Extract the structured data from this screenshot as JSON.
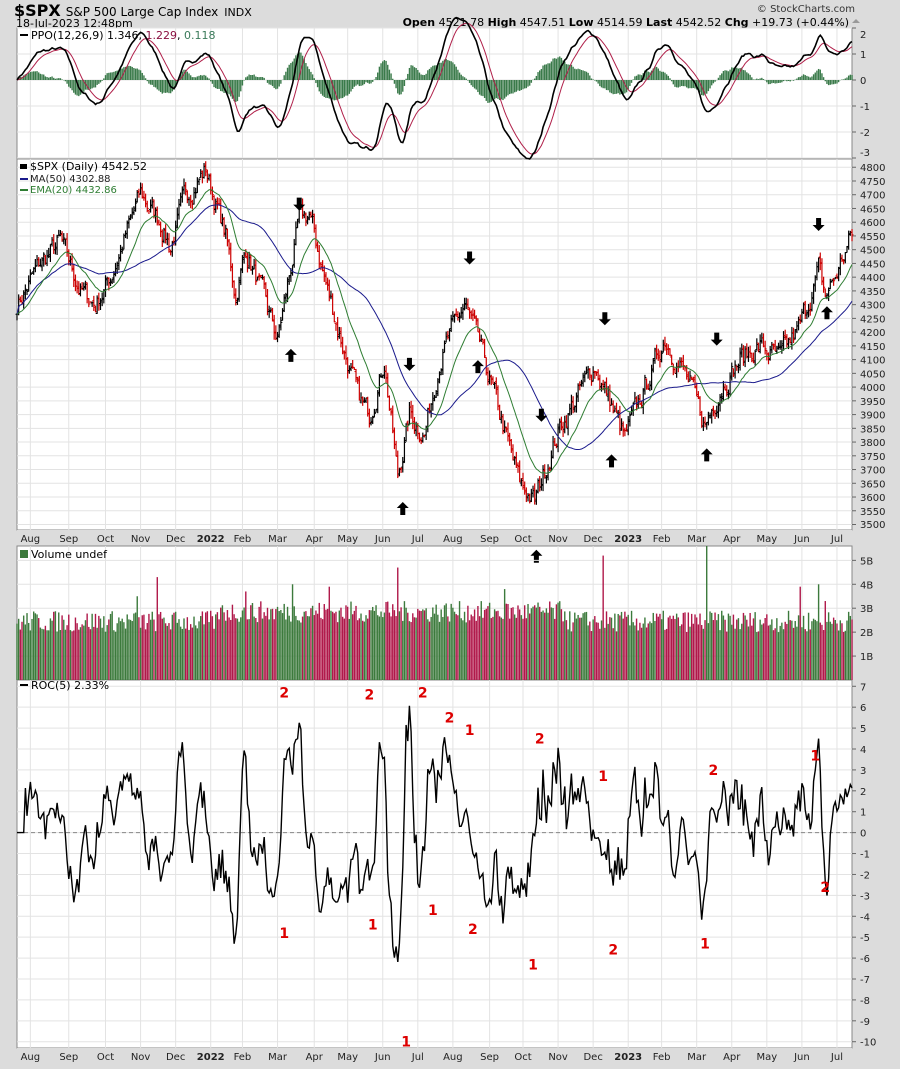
{
  "header": {
    "symbol": "$SPX",
    "name": "S&P 500 Large Cap Index",
    "exchange": "INDX",
    "datetime": "18-Jul-2023 12:48pm",
    "copyright": "© StockCharts.com",
    "open_label": "Open",
    "open": "4521.78",
    "high_label": "High",
    "high": "4547.51",
    "low_label": "Low",
    "low": "4514.59",
    "last_label": "Last",
    "last": "4542.52",
    "chg_label": "Chg",
    "chg": "+19.73 (+0.44%)"
  },
  "chart_data": [
    {
      "type": "line",
      "panel": "ppo",
      "title": "PPO(12,26,9)",
      "values_text": [
        "1.346",
        "1.229",
        "0.118"
      ],
      "ylim": [
        -3,
        2
      ],
      "yticks": [
        2,
        1,
        0,
        -1,
        -2,
        -3
      ],
      "colors": {
        "ppo": "#000000",
        "signal": "#b0204a",
        "hist": "#3a7a4a"
      }
    },
    {
      "type": "ohlc",
      "panel": "price",
      "title": "$SPX (Daily)",
      "last": "4542.52",
      "ma_label": "MA(50)",
      "ma_value": "4302.88",
      "ema_label": "EMA(20)",
      "ema_value": "4432.86",
      "ylim": [
        3480,
        4830
      ],
      "yticks": [
        4800,
        4750,
        4700,
        4650,
        4600,
        4550,
        4500,
        4450,
        4400,
        4350,
        4300,
        4250,
        4200,
        4150,
        4100,
        4050,
        4000,
        3950,
        3900,
        3850,
        3800,
        3750,
        3700,
        3650,
        3600,
        3550,
        3500
      ],
      "trading_days": 500,
      "anchors_day_close": [
        [
          0,
          4300
        ],
        [
          14,
          4450
        ],
        [
          26,
          4530
        ],
        [
          38,
          4350
        ],
        [
          47,
          4300
        ],
        [
          56,
          4400
        ],
        [
          74,
          4700
        ],
        [
          86,
          4600
        ],
        [
          92,
          4510
        ],
        [
          101,
          4700
        ],
        [
          113,
          4790
        ],
        [
          125,
          4550
        ],
        [
          131,
          4330
        ],
        [
          137,
          4500
        ],
        [
          149,
          4300
        ],
        [
          156,
          4170
        ],
        [
          169,
          4600
        ],
        [
          175,
          4630
        ],
        [
          184,
          4400
        ],
        [
          196,
          4130
        ],
        [
          205,
          3950
        ],
        [
          211,
          3900
        ],
        [
          220,
          4100
        ],
        [
          228,
          3666
        ],
        [
          235,
          3900
        ],
        [
          244,
          3830
        ],
        [
          253,
          4100
        ],
        [
          268,
          4300
        ],
        [
          277,
          4150
        ],
        [
          289,
          3900
        ],
        [
          301,
          3650
        ],
        [
          310,
          3585
        ],
        [
          316,
          3700
        ],
        [
          325,
          3850
        ],
        [
          334,
          3950
        ],
        [
          346,
          4080
        ],
        [
          355,
          3950
        ],
        [
          364,
          3810
        ],
        [
          373,
          3950
        ],
        [
          388,
          4180
        ],
        [
          400,
          4050
        ],
        [
          412,
          3855
        ],
        [
          421,
          4000
        ],
        [
          433,
          4100
        ],
        [
          445,
          4150
        ],
        [
          457,
          4100
        ],
        [
          469,
          4220
        ],
        [
          480,
          4425
        ],
        [
          484,
          4330
        ],
        [
          490,
          4400
        ],
        [
          500,
          4554
        ]
      ],
      "up_arrows_day_price": [
        [
          164,
          4169
        ],
        [
          231,
          3612
        ],
        [
          276,
          4128
        ],
        [
          311,
          3438
        ],
        [
          356,
          3785
        ],
        [
          413,
          3807
        ],
        [
          485,
          4324
        ]
      ],
      "down_arrows_day_price": [
        [
          169,
          4612
        ],
        [
          235,
          4029
        ],
        [
          271,
          4416
        ],
        [
          314,
          3844
        ],
        [
          352,
          4195
        ],
        [
          419,
          4121
        ],
        [
          480,
          4538
        ]
      ],
      "colors": {
        "up": "#000000",
        "down": "#cc0000",
        "ma": "#1a1a8c",
        "ema": "#2e7d32"
      }
    },
    {
      "type": "bar",
      "panel": "volume",
      "title": "Volume undef",
      "ylim": [
        0,
        5.6
      ],
      "yticks": [
        "5B",
        "4B",
        "3B",
        "2B",
        "1B"
      ],
      "ytick_values": [
        5,
        4,
        3,
        2,
        1
      ],
      "unit": "billion shares",
      "spike_days_value": [
        [
          72,
          3.5
        ],
        [
          84,
          4.3
        ],
        [
          137,
          3.7
        ],
        [
          165,
          4.0
        ],
        [
          187,
          3.9
        ],
        [
          228,
          4.7
        ],
        [
          292,
          3.8
        ],
        [
          351,
          5.2
        ],
        [
          413,
          5.6
        ],
        [
          469,
          3.9
        ],
        [
          480,
          4.0
        ],
        [
          484,
          3.3
        ]
      ],
      "colors": {
        "up": "#3c7a3c",
        "down": "#b0184a"
      }
    },
    {
      "type": "line",
      "panel": "roc",
      "title": "ROC(5)",
      "value": "2.33%",
      "ylim": [
        -10.3,
        7.3
      ],
      "yticks": [
        7,
        6,
        5,
        4,
        3,
        2,
        1,
        0,
        -1,
        -2,
        -3,
        -4,
        -5,
        -6,
        -7,
        -8,
        -9,
        -10
      ],
      "annotations_day_value_label": [
        [
          160,
          6.7,
          "2"
        ],
        [
          211,
          6.6,
          "2"
        ],
        [
          243,
          6.7,
          "2"
        ],
        [
          259,
          5.5,
          "2"
        ],
        [
          271,
          4.9,
          "1"
        ],
        [
          313,
          4.5,
          "2"
        ],
        [
          351,
          2.7,
          "1"
        ],
        [
          417,
          3.0,
          "2"
        ],
        [
          478,
          3.7,
          "1"
        ],
        [
          160,
          -4.8,
          "1"
        ],
        [
          213,
          -4.4,
          "1"
        ],
        [
          249,
          -3.7,
          "1"
        ],
        [
          273,
          -4.6,
          "2"
        ],
        [
          309,
          -6.3,
          "1"
        ],
        [
          357,
          -5.6,
          "2"
        ],
        [
          412,
          -5.3,
          "1"
        ],
        [
          484,
          -2.6,
          "2"
        ],
        [
          233,
          -10.0,
          "1"
        ]
      ],
      "colors": {
        "line": "#000000",
        "annotation": "#dd0000"
      }
    }
  ],
  "x_axis": {
    "labels": [
      "Aug",
      "Sep",
      "Oct",
      "Nov",
      "Dec",
      "2022",
      "Feb",
      "Mar",
      "Apr",
      "May",
      "Jun",
      "Jul",
      "Aug",
      "Sep",
      "Oct",
      "Nov",
      "Dec",
      "2023",
      "Feb",
      "Mar",
      "Apr",
      "May",
      "Jun",
      "Jul"
    ],
    "label_days": [
      8,
      31,
      53,
      74,
      95,
      116,
      135,
      156,
      178,
      198,
      219,
      240,
      261,
      283,
      303,
      324,
      345,
      366,
      386,
      407,
      428,
      449,
      470,
      491
    ],
    "bold_labels": [
      "2022",
      "2023"
    ]
  }
}
